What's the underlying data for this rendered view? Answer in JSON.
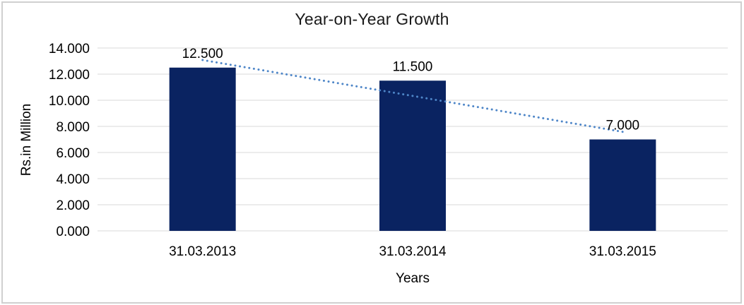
{
  "chart_data": {
    "type": "bar",
    "title": "Year-on-Year Growth",
    "xlabel": "Years",
    "ylabel": "Rs.in Million",
    "categories": [
      "31.03.2013",
      "31.03.2014",
      "31.03.2015"
    ],
    "values": [
      12.5,
      11.5,
      7.0
    ],
    "value_labels": [
      "12.500",
      "11.500",
      "7.000"
    ],
    "y_tick_values": [
      0,
      2,
      4,
      6,
      8,
      10,
      12,
      14
    ],
    "y_tick_labels": [
      "0.000",
      "2.000",
      "4.000",
      "6.000",
      "8.000",
      "10.000",
      "12.000",
      "14.000"
    ],
    "ylim": [
      0,
      14
    ],
    "grid": true,
    "legend": false,
    "trendline": {
      "type": "linear",
      "style": "dotted",
      "color": "#4e86c8"
    },
    "colors": {
      "bar": "#0a2361",
      "grid": "#d9d9d9",
      "border": "#d0d0d0",
      "text": "#000000"
    }
  }
}
